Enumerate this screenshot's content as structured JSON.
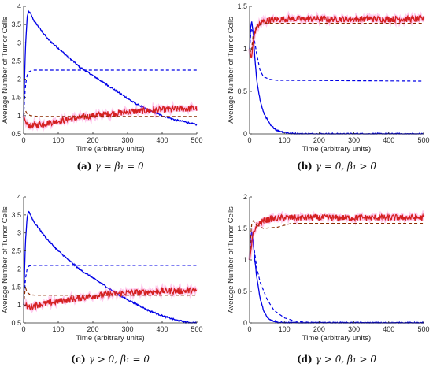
{
  "chart_data": [
    {
      "type": "line",
      "panel": "a",
      "caption_label": "(a)",
      "caption_text": "γ = β₁ = 0",
      "xlabel": "Time (arbitrary units)",
      "ylabel": "Average Number of Tumor Cells",
      "xlim": [
        0,
        500
      ],
      "ylim": [
        0.5,
        4
      ],
      "xticks": [
        0,
        100,
        200,
        300,
        400,
        500
      ],
      "yticks": [
        0.5,
        1,
        1.5,
        2,
        2.5,
        3,
        3.5,
        4
      ],
      "series": [
        {
          "color": "#0000e6",
          "style": "solid",
          "x": [
            0,
            5,
            10,
            15,
            20,
            30,
            50,
            70,
            100,
            130,
            160,
            200,
            240,
            280,
            320,
            360,
            400,
            440,
            470,
            500
          ],
          "y": [
            1,
            2.8,
            3.7,
            3.85,
            3.8,
            3.6,
            3.35,
            3.1,
            2.85,
            2.6,
            2.35,
            2.1,
            1.85,
            1.6,
            1.35,
            1.15,
            1.0,
            0.88,
            0.82,
            0.75
          ]
        },
        {
          "color": "#0000e6",
          "style": "dashed",
          "x": [
            0,
            5,
            10,
            15,
            25,
            500
          ],
          "y": [
            1,
            1.8,
            2.1,
            2.2,
            2.25,
            2.25
          ]
        },
        {
          "color": "#d42020",
          "style": "solid",
          "x": [
            0,
            5,
            10,
            20,
            40,
            70,
            100,
            150,
            200,
            250,
            300,
            350,
            400,
            450,
            500
          ],
          "y": [
            1,
            0.85,
            0.75,
            0.72,
            0.75,
            0.8,
            0.85,
            0.93,
            1.0,
            1.05,
            1.1,
            1.13,
            1.16,
            1.18,
            1.2
          ]
        },
        {
          "color": "#8b2a00",
          "style": "dashed",
          "x": [
            0,
            5,
            10,
            20,
            40,
            500
          ],
          "y": [
            1,
            1.15,
            1.05,
            1.0,
            0.98,
            0.98
          ]
        }
      ]
    },
    {
      "type": "line",
      "panel": "b",
      "caption_label": "(b)",
      "caption_text": "γ = 0, β₁ > 0",
      "xlabel": "Time (arbitrary units)",
      "ylabel": "Average Number of Tumor Cells",
      "xlim": [
        0,
        500
      ],
      "ylim": [
        0,
        1.5
      ],
      "xticks": [
        0,
        100,
        200,
        300,
        400,
        500
      ],
      "yticks": [
        0,
        0.5,
        1,
        1.5
      ],
      "series": [
        {
          "color": "#0000e6",
          "style": "solid",
          "x": [
            0,
            3,
            6,
            10,
            15,
            20,
            30,
            40,
            60,
            80,
            100,
            120,
            150,
            500
          ],
          "y": [
            1,
            1.25,
            1.32,
            1.2,
            0.9,
            0.65,
            0.4,
            0.25,
            0.1,
            0.04,
            0.02,
            0.005,
            0,
            0
          ]
        },
        {
          "color": "#0000e6",
          "style": "dashed",
          "x": [
            0,
            5,
            10,
            20,
            30,
            40,
            60,
            80,
            500
          ],
          "y": [
            1,
            1.25,
            1.2,
            0.95,
            0.75,
            0.67,
            0.64,
            0.63,
            0.62
          ]
        },
        {
          "color": "#d42020",
          "style": "solid",
          "x": [
            0,
            5,
            10,
            15,
            25,
            40,
            60,
            100,
            200,
            300,
            400,
            500
          ],
          "y": [
            1,
            0.88,
            1.05,
            1.2,
            1.28,
            1.32,
            1.34,
            1.35,
            1.35,
            1.35,
            1.35,
            1.35
          ]
        },
        {
          "color": "#8b2a00",
          "style": "dashed",
          "x": [
            0,
            5,
            10,
            20,
            40,
            500
          ],
          "y": [
            1,
            0.95,
            1.15,
            1.26,
            1.3,
            1.3
          ]
        }
      ]
    },
    {
      "type": "line",
      "panel": "c",
      "caption_label": "(c)",
      "caption_text": "γ > 0, β₁ = 0",
      "xlabel": "Time (arbitrary units)",
      "ylabel": "Average Number of Tumor Cells",
      "xlim": [
        0,
        500
      ],
      "ylim": [
        0.5,
        4
      ],
      "xticks": [
        0,
        100,
        200,
        300,
        400,
        500
      ],
      "yticks": [
        0.5,
        1,
        1.5,
        2,
        2.5,
        3,
        3.5,
        4
      ],
      "series": [
        {
          "color": "#0000e6",
          "style": "solid",
          "x": [
            0,
            5,
            10,
            15,
            20,
            30,
            50,
            70,
            100,
            130,
            160,
            200,
            240,
            280,
            320,
            360,
            400,
            440,
            470,
            500
          ],
          "y": [
            1,
            2.7,
            3.45,
            3.6,
            3.5,
            3.3,
            3.05,
            2.8,
            2.5,
            2.25,
            2.0,
            1.75,
            1.5,
            1.25,
            1.05,
            0.85,
            0.7,
            0.58,
            0.52,
            0.5
          ]
        },
        {
          "color": "#0000e6",
          "style": "dashed",
          "x": [
            0,
            5,
            10,
            15,
            25,
            500
          ],
          "y": [
            1,
            1.7,
            2.0,
            2.08,
            2.1,
            2.1
          ]
        },
        {
          "color": "#d42020",
          "style": "solid",
          "x": [
            0,
            5,
            10,
            20,
            40,
            70,
            100,
            150,
            200,
            250,
            300,
            350,
            400,
            450,
            500
          ],
          "y": [
            1,
            0.98,
            0.95,
            0.95,
            1.0,
            1.05,
            1.1,
            1.17,
            1.25,
            1.3,
            1.34,
            1.36,
            1.38,
            1.39,
            1.4
          ]
        },
        {
          "color": "#8b2a00",
          "style": "dashed",
          "x": [
            0,
            5,
            10,
            20,
            40,
            500
          ],
          "y": [
            1,
            1.5,
            1.35,
            1.28,
            1.27,
            1.27
          ]
        }
      ]
    },
    {
      "type": "line",
      "panel": "d",
      "caption_label": "(d)",
      "caption_text": "γ > 0, β₁ > 0",
      "xlabel": "Time (arbitrary units)",
      "ylabel": "Average Number of Tumor Cells",
      "xlim": [
        0,
        500
      ],
      "ylim": [
        0,
        2
      ],
      "xticks": [
        0,
        100,
        200,
        300,
        400,
        500
      ],
      "yticks": [
        0,
        0.5,
        1,
        1.5,
        2
      ],
      "series": [
        {
          "color": "#0000e6",
          "style": "solid",
          "x": [
            0,
            3,
            6,
            10,
            15,
            20,
            30,
            40,
            50,
            60,
            80,
            100,
            500
          ],
          "y": [
            1,
            1.35,
            1.45,
            1.3,
            1.0,
            0.75,
            0.4,
            0.2,
            0.1,
            0.05,
            0.01,
            0,
            0
          ]
        },
        {
          "color": "#0000e6",
          "style": "dashed",
          "x": [
            0,
            5,
            10,
            20,
            30,
            50,
            70,
            100,
            130,
            160,
            500
          ],
          "y": [
            1,
            1.35,
            1.3,
            0.9,
            0.65,
            0.38,
            0.2,
            0.08,
            0.03,
            0.01,
            0
          ]
        },
        {
          "color": "#d42020",
          "style": "solid",
          "x": [
            0,
            5,
            10,
            20,
            40,
            60,
            100,
            200,
            300,
            400,
            500
          ],
          "y": [
            1,
            1.2,
            1.4,
            1.55,
            1.62,
            1.65,
            1.67,
            1.67,
            1.67,
            1.67,
            1.67
          ]
        },
        {
          "color": "#8b2a00",
          "style": "dashed",
          "x": [
            0,
            5,
            10,
            20,
            40,
            80,
            120,
            500
          ],
          "y": [
            1,
            1.55,
            1.62,
            1.55,
            1.5,
            1.52,
            1.58,
            1.58
          ]
        }
      ]
    }
  ]
}
